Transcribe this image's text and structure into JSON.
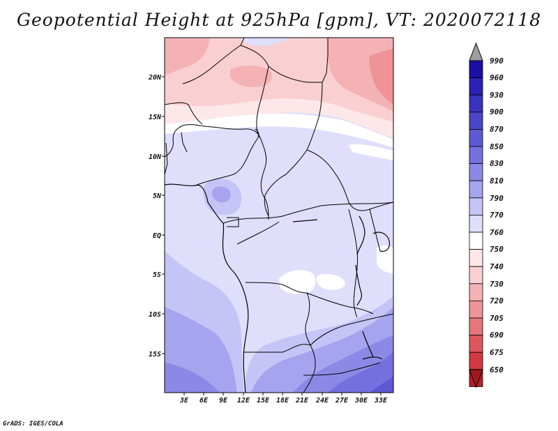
{
  "title": "Geopotential Height at 925hPa [gpm], VT: 2020072118",
  "footer": "GrADS: IGES/COLA",
  "map": {
    "lat_labels": [
      "20N",
      "15N",
      "10N",
      "5N",
      "EQ",
      "5S",
      "10S",
      "15S"
    ],
    "lon_labels": [
      "3E",
      "6E",
      "9E",
      "12E",
      "15E",
      "18E",
      "21E",
      "24E",
      "27E",
      "30E",
      "33E"
    ]
  },
  "colorbar": {
    "levels": [
      "990",
      "960",
      "930",
      "900",
      "870",
      "850",
      "830",
      "810",
      "790",
      "770",
      "760",
      "750",
      "740",
      "730",
      "720",
      "705",
      "690",
      "675",
      "650"
    ],
    "colors": [
      "#1a0ea4",
      "#2b22b4",
      "#3a33bf",
      "#4b46c9",
      "#5d59d2",
      "#7470de",
      "#8c89e6",
      "#a6a4ee",
      "#c5c4f6",
      "#dfdefb",
      "#ffffff",
      "#fde7e8",
      "#f9cfd1",
      "#f4b2b5",
      "#ee9497",
      "#e6767a",
      "#dd575d",
      "#d13a40",
      "#b51f26"
    ],
    "top_arrow_color": "#9e9e9e",
    "bottom_arrow_color": "#a1161c"
  }
}
